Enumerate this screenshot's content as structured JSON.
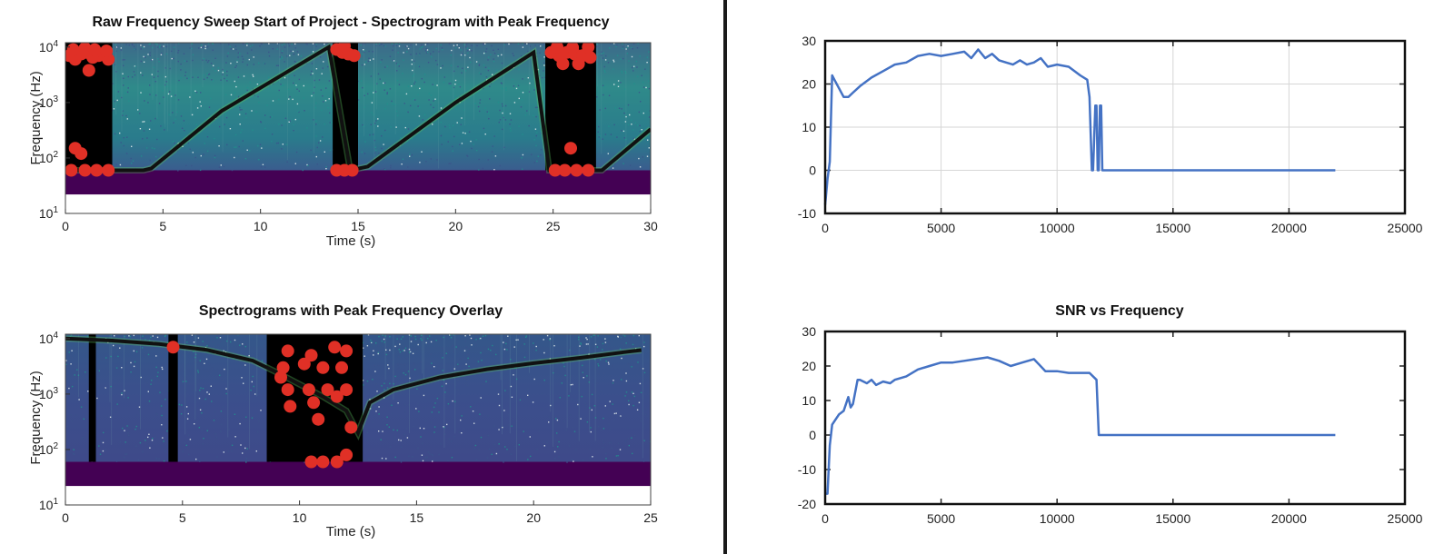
{
  "chart_data": [
    {
      "type": "heatmap",
      "title": "Raw Frequency Sweep Start of Project - Spectrogram with Peak Frequency",
      "xlabel": "Time (s)",
      "ylabel": "Frequency (Hz)",
      "xlim": [
        0,
        30
      ],
      "ylim": [
        10,
        12000
      ],
      "yscale": "log",
      "xticks": [
        0,
        5,
        10,
        15,
        20,
        25,
        30
      ],
      "yticks": [
        {
          "exp": "1",
          "value": 10
        },
        {
          "exp": "2",
          "value": 100
        },
        {
          "exp": "3",
          "value": 1000
        },
        {
          "exp": "4",
          "value": 10000
        }
      ],
      "colormap": [
        "#440154",
        "#3b528b",
        "#21918c",
        "#5ec962",
        "#fde725"
      ],
      "peak_line": [
        [
          0,
          60
        ],
        [
          2,
          60
        ],
        [
          3,
          60
        ],
        [
          4,
          60
        ],
        [
          4.4,
          65
        ],
        [
          8,
          700
        ],
        [
          13.5,
          10000
        ],
        [
          14.6,
          60
        ],
        [
          15.5,
          70
        ],
        [
          20,
          1000
        ],
        [
          24,
          8000
        ],
        [
          24.8,
          60
        ],
        [
          27.5,
          60
        ],
        [
          30,
          330
        ]
      ],
      "peak_color": "#111111",
      "black_bands": [
        [
          0,
          2.4
        ],
        [
          13.7,
          15
        ],
        [
          24.6,
          27.2
        ]
      ],
      "red_peaks": [
        [
          0.2,
          7000
        ],
        [
          0.5,
          6000
        ],
        [
          0.8,
          7500
        ],
        [
          1.1,
          8000
        ],
        [
          1.4,
          6500
        ],
        [
          1.7,
          7000
        ],
        [
          2,
          7500
        ],
        [
          2.2,
          6000
        ],
        [
          0.4,
          9000
        ],
        [
          1,
          9500
        ],
        [
          1.5,
          9000
        ],
        [
          2.1,
          8500
        ],
        [
          1.2,
          3800
        ],
        [
          0.5,
          150
        ],
        [
          0.8,
          120
        ],
        [
          0.3,
          60
        ],
        [
          1,
          60
        ],
        [
          1.6,
          60
        ],
        [
          2.2,
          60
        ],
        [
          13.9,
          9000
        ],
        [
          14.2,
          8000
        ],
        [
          14.5,
          7500
        ],
        [
          14.8,
          7000
        ],
        [
          14.3,
          10500
        ],
        [
          13.9,
          60
        ],
        [
          14.3,
          60
        ],
        [
          14.7,
          60
        ],
        [
          24.9,
          8000
        ],
        [
          25.3,
          7000
        ],
        [
          25.7,
          8000
        ],
        [
          26.1,
          7500
        ],
        [
          26.5,
          7000
        ],
        [
          26.9,
          6500
        ],
        [
          25.2,
          10000
        ],
        [
          26,
          9800
        ],
        [
          26.8,
          10000
        ],
        [
          25.5,
          5000
        ],
        [
          26.3,
          5000
        ],
        [
          25.1,
          60
        ],
        [
          25.6,
          60
        ],
        [
          26.2,
          60
        ],
        [
          26.8,
          60
        ],
        [
          25.9,
          150
        ]
      ],
      "red_color": "#e03026"
    },
    {
      "type": "heatmap",
      "title": "Spectrograms with Peak Frequency Overlay",
      "xlabel": "Time (s)",
      "ylabel": "Frequency (Hz)",
      "xlim": [
        0,
        25
      ],
      "ylim": [
        10,
        12000
      ],
      "yscale": "log",
      "xticks": [
        0,
        5,
        10,
        15,
        20,
        25
      ],
      "yticks": [
        {
          "exp": "1",
          "value": 10
        },
        {
          "exp": "2",
          "value": 100
        },
        {
          "exp": "3",
          "value": 1000
        },
        {
          "exp": "4",
          "value": 10000
        }
      ],
      "colormap": [
        "#440154",
        "#3b528b",
        "#21918c",
        "#5ec962",
        "#fde725"
      ],
      "peak_line": [
        [
          0,
          10000
        ],
        [
          2,
          9200
        ],
        [
          4,
          8000
        ],
        [
          6,
          6300
        ],
        [
          8,
          4000
        ],
        [
          9,
          2500
        ],
        [
          10,
          1500
        ],
        [
          11,
          900
        ],
        [
          12,
          500
        ],
        [
          12.5,
          200
        ],
        [
          13,
          700
        ],
        [
          14,
          1200
        ],
        [
          16,
          2000
        ],
        [
          18,
          2800
        ],
        [
          20,
          3600
        ],
        [
          22,
          4500
        ],
        [
          24,
          5800
        ],
        [
          24.6,
          6200
        ]
      ],
      "peak_color": "#111111",
      "black_bands": [
        [
          1,
          1.3
        ],
        [
          4.4,
          4.8
        ],
        [
          8.6,
          12.7
        ]
      ],
      "red_peaks": [
        [
          4.6,
          7000
        ],
        [
          9.5,
          6000
        ],
        [
          10.5,
          5000
        ],
        [
          11.5,
          7000
        ],
        [
          12,
          6000
        ],
        [
          9.3,
          3000
        ],
        [
          10.2,
          3500
        ],
        [
          11,
          3000
        ],
        [
          11.8,
          3000
        ],
        [
          9.5,
          1200
        ],
        [
          10.4,
          1200
        ],
        [
          11.2,
          1200
        ],
        [
          12,
          1200
        ],
        [
          9.6,
          600
        ],
        [
          10.6,
          700
        ],
        [
          11.6,
          900
        ],
        [
          10.8,
          350
        ],
        [
          12.2,
          250
        ],
        [
          10.5,
          60
        ],
        [
          11,
          60
        ],
        [
          11.6,
          60
        ],
        [
          12,
          80
        ],
        [
          9.2,
          2000
        ]
      ],
      "red_color": "#e03026"
    },
    {
      "type": "line",
      "title": "",
      "xlabel": "",
      "ylabel": "",
      "xlim": [
        0,
        25000
      ],
      "ylim": [
        -10,
        30
      ],
      "grid": true,
      "xticks": [
        0,
        5000,
        10000,
        15000,
        20000,
        25000
      ],
      "yticks": [
        -10,
        0,
        10,
        20,
        30
      ],
      "series": [
        {
          "color": "#4472c4",
          "x": [
            0,
            100,
            200,
            300,
            400,
            600,
            800,
            1000,
            1200,
            1500,
            2000,
            2500,
            3000,
            3500,
            4000,
            4500,
            5000,
            5500,
            6000,
            6300,
            6600,
            6900,
            7200,
            7500,
            7800,
            8100,
            8400,
            8700,
            9000,
            9300,
            9600,
            10000,
            10500,
            11000,
            11300,
            11400,
            11500,
            11550,
            11650,
            11700,
            11750,
            11800,
            11850,
            11900,
            11950,
            12000,
            14000,
            18000,
            22000
          ],
          "y": [
            -8,
            -2,
            2,
            22,
            21,
            19,
            17,
            17,
            18,
            19.5,
            21.5,
            23,
            24.5,
            25,
            26.5,
            27,
            26.5,
            27,
            27.5,
            26,
            28,
            26,
            27,
            25.5,
            25,
            24.5,
            25.5,
            24.5,
            25,
            26,
            24,
            24.5,
            24,
            22,
            21,
            17,
            0,
            0,
            15,
            15,
            0,
            0,
            15,
            15,
            0,
            0,
            0,
            0,
            0
          ]
        }
      ]
    },
    {
      "type": "line",
      "title": "SNR vs Frequency",
      "xlabel": "",
      "ylabel": "",
      "xlim": [
        0,
        25000
      ],
      "ylim": [
        -20,
        30
      ],
      "grid": false,
      "xticks": [
        0,
        5000,
        10000,
        15000,
        20000,
        25000
      ],
      "yticks": [
        -20,
        -10,
        0,
        10,
        20,
        30
      ],
      "series": [
        {
          "color": "#4472c4",
          "x": [
            0,
            100,
            200,
            300,
            400,
            600,
            800,
            1000,
            1100,
            1200,
            1400,
            1500,
            1800,
            2000,
            2200,
            2500,
            2800,
            3000,
            3500,
            4000,
            4500,
            5000,
            5500,
            6000,
            6500,
            7000,
            7500,
            8000,
            8500,
            9000,
            9500,
            10000,
            10500,
            11000,
            11400,
            11700,
            11800,
            12000,
            14000,
            18000,
            22000
          ],
          "y": [
            -17,
            -17,
            -3,
            3,
            4,
            6,
            7,
            11,
            8,
            9,
            16,
            16,
            15,
            16,
            14.5,
            15.5,
            15,
            16,
            17,
            19,
            20,
            21,
            21,
            21.5,
            22,
            22.5,
            21.5,
            20,
            21,
            22,
            18.5,
            18.5,
            18,
            18,
            18,
            16,
            0,
            0,
            0,
            0,
            0
          ]
        }
      ]
    }
  ]
}
